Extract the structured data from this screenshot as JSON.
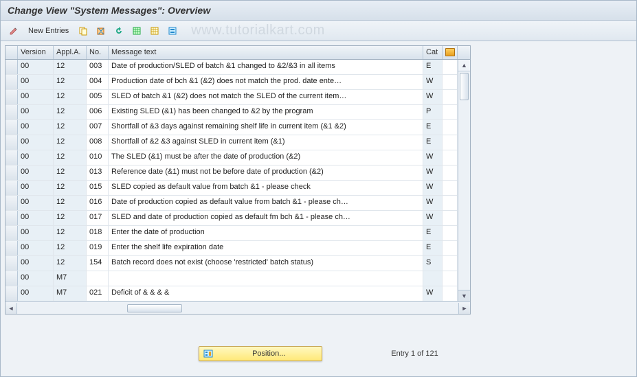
{
  "title": "Change View \"System Messages\": Overview",
  "toolbar": {
    "new_entries_label": "New Entries"
  },
  "watermark": "www.tutorialkart.com",
  "columns": {
    "version": "Version",
    "appl": "Appl.A.",
    "no": "No.",
    "msg": "Message text",
    "cat": "Cat"
  },
  "rows": [
    {
      "ver": "00",
      "app": "12",
      "no": "003",
      "txt": "Date of production/SLED of batch &1 changed to &2/&3 in all items",
      "cat": "E"
    },
    {
      "ver": "00",
      "app": "12",
      "no": "004",
      "txt": "Production date of bch &1 (&2) does not match the prod. date ente…",
      "cat": "W"
    },
    {
      "ver": "00",
      "app": "12",
      "no": "005",
      "txt": "SLED of batch &1 (&2) does not match the SLED of the current item…",
      "cat": "W"
    },
    {
      "ver": "00",
      "app": "12",
      "no": "006",
      "txt": "Existing SLED (&1) has been changed to &2 by the program",
      "cat": "P"
    },
    {
      "ver": "00",
      "app": "12",
      "no": "007",
      "txt": "Shortfall of &3 days against remaining shelf life in current item (&1 &2)",
      "cat": "E"
    },
    {
      "ver": "00",
      "app": "12",
      "no": "008",
      "txt": "Shortfall of &2 &3 against SLED in current item (&1)",
      "cat": "E"
    },
    {
      "ver": "00",
      "app": "12",
      "no": "010",
      "txt": "The SLED (&1) must be after the date of production (&2)",
      "cat": "W"
    },
    {
      "ver": "00",
      "app": "12",
      "no": "013",
      "txt": "Reference date (&1) must not be before date of production (&2)",
      "cat": "W"
    },
    {
      "ver": "00",
      "app": "12",
      "no": "015",
      "txt": "SLED copied as default value from batch &1 - please check",
      "cat": "W"
    },
    {
      "ver": "00",
      "app": "12",
      "no": "016",
      "txt": "Date of production copied as default value from batch &1 - please ch…",
      "cat": "W"
    },
    {
      "ver": "00",
      "app": "12",
      "no": "017",
      "txt": "SLED and date of production copied as default fm bch &1 - please ch…",
      "cat": "W"
    },
    {
      "ver": "00",
      "app": "12",
      "no": "018",
      "txt": "Enter the date of production",
      "cat": "E"
    },
    {
      "ver": "00",
      "app": "12",
      "no": "019",
      "txt": "Enter the shelf life expiration date",
      "cat": "E"
    },
    {
      "ver": "00",
      "app": "12",
      "no": "154",
      "txt": "Batch record does not exist (choose 'restricted' batch status)",
      "cat": "S"
    },
    {
      "ver": "00",
      "app": "M7",
      "no": "",
      "txt": "",
      "cat": ""
    },
    {
      "ver": "00",
      "app": "M7",
      "no": "021",
      "txt": "Deficit of & & & &",
      "cat": "W"
    }
  ],
  "footer": {
    "position_label": "Position...",
    "entry_text": "Entry 1 of 121"
  },
  "colors": {
    "header_bg_top": "#e8eef5",
    "header_bg_bot": "#d6e0ea",
    "grid_border": "#a0b0c0",
    "edit_cell_bg": "#e8f0f6",
    "position_btn_bg_top": "#fff8c0",
    "position_btn_bg_bot": "#ffe978"
  }
}
